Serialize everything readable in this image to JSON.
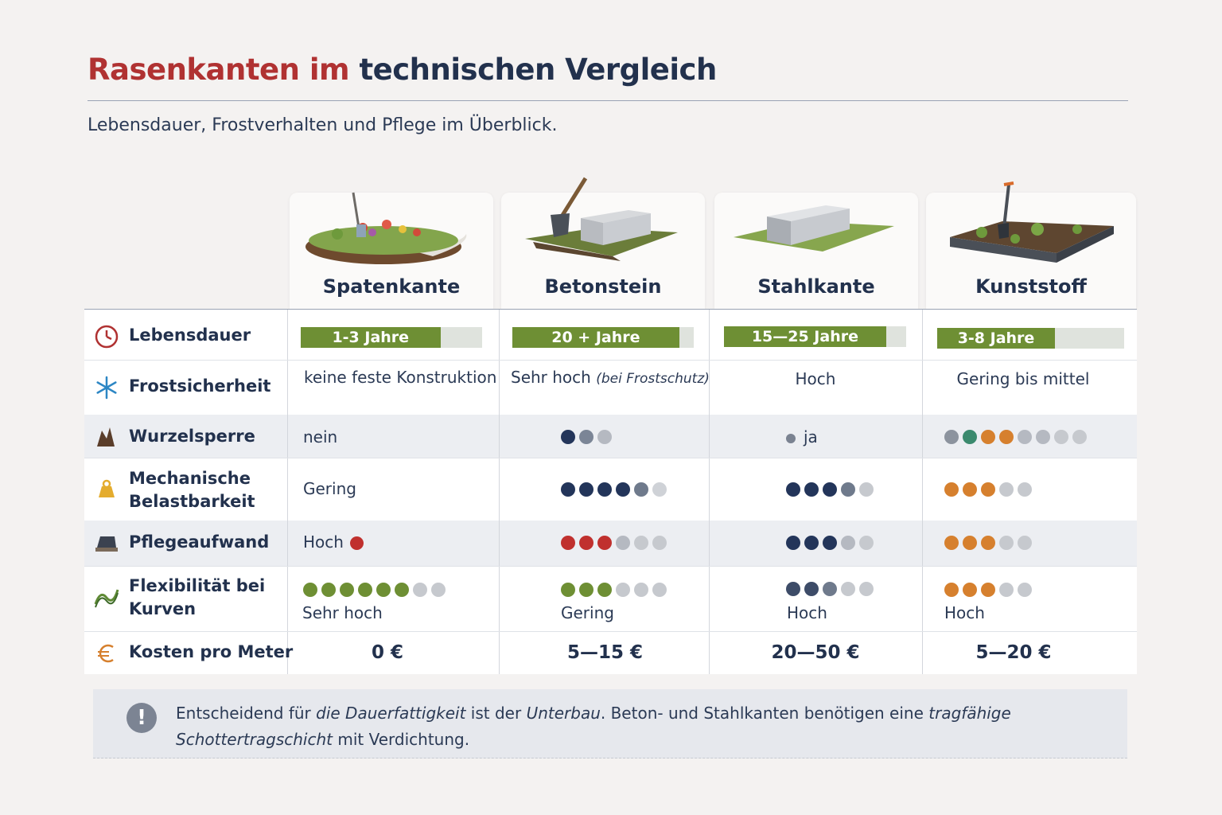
{
  "title": {
    "part1": "Rasenkanten im",
    "part2": "technischen Vergleich"
  },
  "subtitle": "Lebensdauer, Frostverhalten und Pflege im Überblick.",
  "columns": [
    {
      "name": "Spatenkante",
      "image": "garden-bed-with-spade-illustration"
    },
    {
      "name": "Betonstein",
      "image": "concrete-block-with-shovel-illustration"
    },
    {
      "name": "Stahlkante",
      "image": "steel-edge-on-lawn-illustration"
    },
    {
      "name": "Kunststoff",
      "image": "plastic-edge-bed-with-shovel-illustration"
    }
  ],
  "rows": {
    "lifespan": {
      "label": "Lebensdauer",
      "icon": "clock-icon",
      "values": [
        {
          "text": "1-3 Jahre",
          "level": 0.77
        },
        {
          "text": "20 + Jahre",
          "level": 0.92
        },
        {
          "text": "15—25 Jahre",
          "level": 0.89
        },
        {
          "text": "3-8 Jahre",
          "level": 0.63
        }
      ]
    },
    "frost": {
      "label": "Frostsicherheit",
      "icon": "snowflake-icon",
      "values": [
        "keine feste Konstruktion",
        "Sehr hoch",
        "Hoch",
        "Gering bis mittel"
      ],
      "note_betonstein": "(bei Frostschutz)"
    },
    "root": {
      "label": "Wurzelsperre",
      "icon": "root-icon",
      "spatenkante_text": "nein",
      "stahlkante_text": "ja"
    },
    "mechanical": {
      "label_line1": "Mechanische",
      "label_line2": "Belastbarkeit",
      "icon": "weight-icon",
      "spatenkante_text": "Gering"
    },
    "care": {
      "label": "Pflegeaufwand",
      "icon": "cap-icon",
      "spatenkante_text": "Hoch"
    },
    "flex": {
      "label_line1": "Flexibilität bei",
      "label_line2": "Kurven",
      "icon": "curve-icon",
      "values": [
        "Sehr hoch",
        "Gering",
        "Hoch",
        "Hoch"
      ]
    },
    "cost": {
      "label": "Kosten pro Meter",
      "icon": "euro-icon",
      "values": [
        "0 €",
        "5—15 €",
        "20—50 €",
        "5—20 €"
      ]
    }
  },
  "ratings_dots": {
    "root_betonstein": [
      "#23355a",
      "#7b8596",
      "#b5b9c1"
    ],
    "root_kunststoff": [
      "#8c939e",
      "#3b8a6e",
      "#d6802e",
      "#d6802e",
      "#b5b9c1",
      "#b5b9c1",
      "#c6c9ce",
      "#c6c9ce"
    ],
    "mech_betonstein": [
      "#23355a",
      "#23355a",
      "#23355a",
      "#23355a",
      "#6f7a8c",
      "#cfd2d7"
    ],
    "mech_stahlkante": [
      "#23355a",
      "#23355a",
      "#23355a",
      "#6f7a8c",
      "#c6c9ce"
    ],
    "mech_kunststoff": [
      "#d6802e",
      "#d6802e",
      "#d6802e",
      "#c6c9ce",
      "#c6c9ce"
    ],
    "care_betonstein": [
      "#c0302e",
      "#c0302e",
      "#c0302e",
      "#b5b9c1",
      "#c6c9ce",
      "#c6c9ce"
    ],
    "care_stahlkante": [
      "#23355a",
      "#23355a",
      "#23355a",
      "#b5b9c1",
      "#c6c9ce"
    ],
    "care_kunststoff": [
      "#d6802e",
      "#d6802e",
      "#d6802e",
      "#c6c9ce",
      "#c6c9ce"
    ],
    "flex_spatenkante": [
      "#6e8f34",
      "#6e8f34",
      "#6e8f34",
      "#6e8f34",
      "#6e8f34",
      "#6e8f34",
      "#c6c9ce",
      "#c6c9ce"
    ],
    "flex_betonstein": [
      "#6e8f34",
      "#6e8f34",
      "#6e8f34",
      "#c6c9ce",
      "#c6c9ce",
      "#c6c9ce"
    ],
    "flex_stahlkante": [
      "#3d4c68",
      "#3d4c68",
      "#6f7a8c",
      "#c6c9ce",
      "#c6c9ce"
    ],
    "flex_kunststoff": [
      "#d6802e",
      "#d6802e",
      "#d6802e",
      "#c6c9ce",
      "#c6c9ce"
    ]
  },
  "note": {
    "icon": "exclamation-icon",
    "t1": "Entscheidend für ",
    "t2": "die Dauerfattigkeit",
    "t3": " ist der ",
    "t4": "Unterbau",
    "t5": ". Beton- und Stahlkanten benötigen eine ",
    "t6": "tragfähige Schottertragschicht",
    "t7": " mit Verdichtung."
  },
  "colors": {
    "accent_red": "#b03232",
    "navy": "#22314d",
    "green": "#6e8f34",
    "orange": "#d6802e"
  }
}
